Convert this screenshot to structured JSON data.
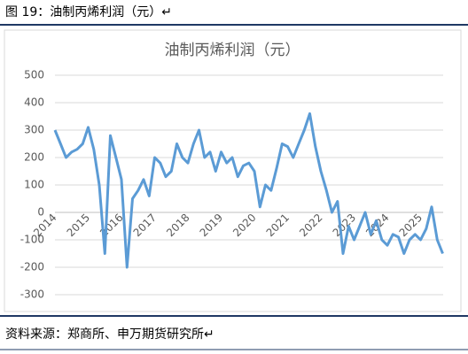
{
  "header": {
    "title": "图 19：油制丙烯利润（元）↵"
  },
  "footer": {
    "source": "资料来源：郑商所、申万期货研究所↵"
  },
  "chart_data": {
    "type": "line",
    "title": "油制丙烯利润（元）",
    "categories": [
      "2014",
      null,
      null,
      null,
      null,
      null,
      "2015",
      null,
      null,
      null,
      null,
      null,
      "2016",
      null,
      null,
      null,
      null,
      null,
      "2017",
      null,
      null,
      null,
      null,
      null,
      "2018",
      null,
      null,
      null,
      null,
      null,
      "2019",
      null,
      null,
      null,
      null,
      null,
      "2020",
      null,
      null,
      null,
      null,
      null,
      "2021",
      null,
      null,
      null,
      null,
      null,
      "2022",
      null,
      null,
      null,
      null,
      null,
      "2023",
      null,
      null,
      null,
      null,
      null,
      "2024",
      null,
      null,
      null,
      null,
      null,
      "2025",
      null,
      null,
      null,
      null
    ],
    "values": [
      300,
      250,
      200,
      220,
      230,
      250,
      310,
      230,
      100,
      -150,
      280,
      200,
      120,
      -200,
      50,
      80,
      120,
      60,
      200,
      180,
      130,
      150,
      250,
      200,
      180,
      250,
      300,
      200,
      220,
      150,
      220,
      180,
      200,
      130,
      170,
      180,
      150,
      20,
      100,
      80,
      160,
      250,
      240,
      200,
      250,
      300,
      360,
      240,
      150,
      80,
      0,
      40,
      -150,
      -50,
      -100,
      -50,
      0,
      -80,
      -30,
      -100,
      -120,
      -80,
      -90,
      -150,
      -100,
      -80,
      -100,
      -60,
      20,
      -100,
      -150
    ],
    "color": "#5b9bd5",
    "ylim": [
      -300,
      500
    ],
    "yticks": [
      -300,
      -200,
      -100,
      0,
      100,
      200,
      300,
      400,
      500
    ],
    "grid": true
  }
}
